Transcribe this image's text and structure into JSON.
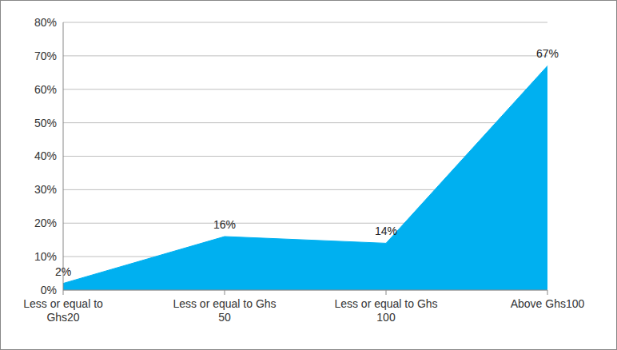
{
  "chart_data": {
    "type": "area",
    "categories": [
      "Less or equal to Ghs20",
      "Less or equal to Ghs 50",
      "Less or equal to Ghs 100",
      "Above Ghs100"
    ],
    "values": [
      2,
      16,
      14,
      67
    ],
    "value_labels": [
      "2%",
      "16%",
      "14%",
      "67%"
    ],
    "color": "#00b0f0",
    "ylim": [
      0,
      80
    ],
    "yticks": [
      {
        "value": 0,
        "label": "0%"
      },
      {
        "value": 10,
        "label": "10%"
      },
      {
        "value": 20,
        "label": "20%"
      },
      {
        "value": 30,
        "label": "30%"
      },
      {
        "value": 40,
        "label": "40%"
      },
      {
        "value": 50,
        "label": "50%"
      },
      {
        "value": 60,
        "label": "60%"
      },
      {
        "value": 70,
        "label": "70%"
      },
      {
        "value": 80,
        "label": "80%"
      }
    ],
    "grid": true,
    "data_labels": true
  }
}
